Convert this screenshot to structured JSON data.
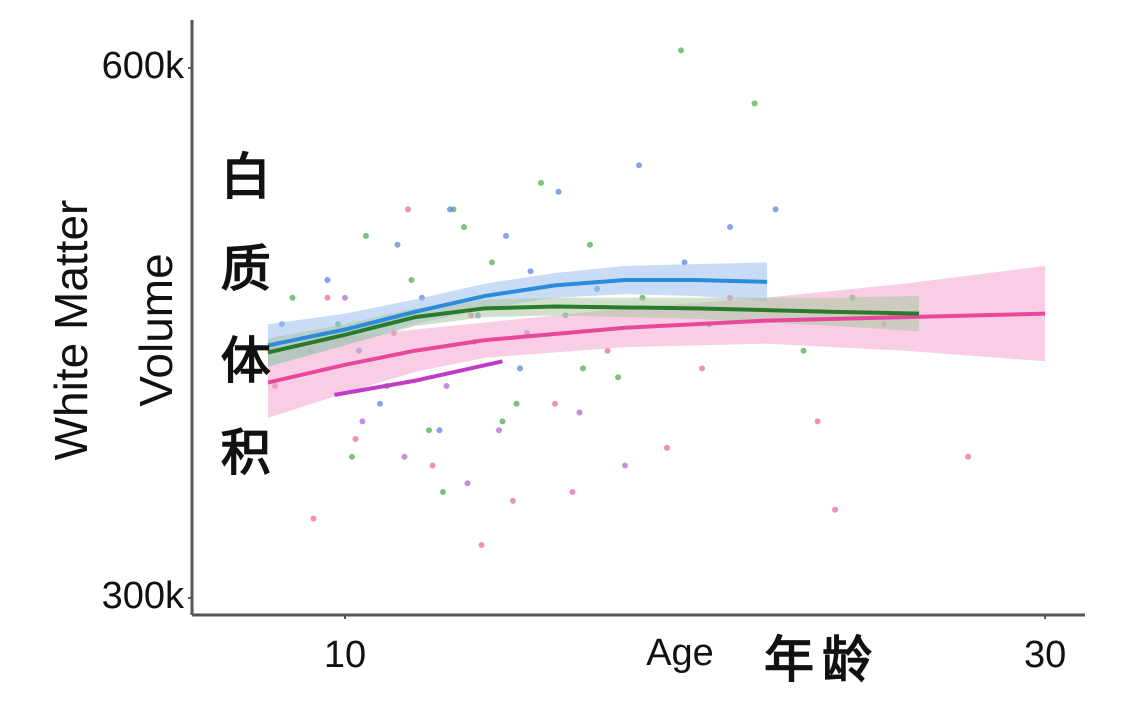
{
  "chart_data": {
    "type": "scatter",
    "xlabel": "Age",
    "ylabel_lines": [
      "White Matter",
      "Volume"
    ],
    "annotations": [
      "白质体积",
      "年龄"
    ],
    "xlim": [
      5.63,
      31.14
    ],
    "xticks": [
      10,
      30
    ],
    "ylim": [
      290400,
      627200
    ],
    "yticks": [
      {
        "value": 300000,
        "label": "300k"
      },
      {
        "value": 600000,
        "label": "600k"
      }
    ],
    "points": [
      {
        "color": "#4fae4f",
        "x": [
          8.5,
          9.8,
          10.6,
          11.2,
          11.9,
          12.4,
          13.1,
          13.7,
          14.2,
          14.9,
          15.6,
          16.3,
          17.0,
          17.8,
          18.5,
          19.6,
          20.4,
          21.7,
          23.1,
          24.5,
          10.2,
          12.8,
          14.5,
          16.8,
          13.4
        ],
        "values": [
          470000,
          455000,
          505000,
          420000,
          480000,
          395000,
          520000,
          445000,
          490000,
          410000,
          535000,
          460000,
          500000,
          425000,
          470000,
          610000,
          455000,
          580000,
          440000,
          470000,
          380000,
          360000,
          400000,
          430000,
          510000
        ]
      },
      {
        "color": "#5b86e0",
        "x": [
          8.2,
          9.5,
          10.4,
          11.5,
          12.2,
          13.0,
          13.8,
          14.6,
          15.3,
          16.1,
          17.2,
          18.4,
          19.7,
          21.0,
          22.3,
          11.0,
          12.7,
          15.0
        ],
        "values": [
          455000,
          480000,
          440000,
          500000,
          470000,
          520000,
          460000,
          505000,
          485000,
          530000,
          475000,
          545000,
          490000,
          510000,
          520000,
          410000,
          395000,
          430000
        ]
      },
      {
        "color": "#ec6aa5",
        "x": [
          8.0,
          9.1,
          10.3,
          11.4,
          12.5,
          13.6,
          14.8,
          16.0,
          17.5,
          19.2,
          21.0,
          23.5,
          25.4,
          27.8,
          9.5,
          11.8,
          13.9,
          16.5,
          20.2,
          24.0
        ],
        "values": [
          420000,
          345000,
          390000,
          450000,
          375000,
          460000,
          355000,
          410000,
          440000,
          385000,
          470000,
          400000,
          455000,
          380000,
          470000,
          520000,
          330000,
          360000,
          430000,
          350000
        ]
      },
      {
        "color": "#b56ad6",
        "x": [
          9.0,
          10.5,
          11.7,
          12.9,
          13.5,
          14.4,
          15.2,
          16.7,
          18.0,
          10.0
        ],
        "values": [
          440000,
          400000,
          380000,
          420000,
          365000,
          395000,
          450000,
          405000,
          375000,
          470000
        ]
      }
    ],
    "series": [
      {
        "color": "#e8489c",
        "band_color": "#f4a6cf",
        "x": [
          7.8,
          10,
          12,
          14,
          18,
          22,
          26,
          30
        ],
        "values": [
          422000,
          432000,
          440000,
          446000,
          453000,
          457000,
          459000,
          461000
        ],
        "lower": [
          402000,
          416000,
          428000,
          436000,
          442000,
          444000,
          440000,
          434000
        ],
        "upper": [
          442000,
          448000,
          452000,
          456000,
          464000,
          470000,
          478000,
          488000
        ]
      },
      {
        "color": "#2d8bdc",
        "band_color": "#9cc0ec",
        "x": [
          7.8,
          10,
          12,
          14,
          16,
          18,
          20,
          22.06
        ],
        "values": [
          443000,
          452000,
          462000,
          471000,
          477000,
          480000,
          480000,
          479000
        ],
        "lower": [
          431000,
          443000,
          455000,
          464000,
          470000,
          472000,
          471000,
          468000
        ],
        "upper": [
          455000,
          461000,
          469000,
          478000,
          484000,
          488000,
          489000,
          490000
        ]
      },
      {
        "color": "#2a7a2a",
        "band_color": "#a9c7a0",
        "x": [
          7.8,
          10,
          12,
          14,
          16,
          20,
          24,
          26.4
        ],
        "values": [
          439000,
          449000,
          459000,
          464000,
          465000,
          464000,
          462000,
          461000
        ],
        "lower": [
          431000,
          443000,
          454000,
          459000,
          460000,
          458000,
          454000,
          451000
        ],
        "upper": [
          447000,
          455000,
          464000,
          469000,
          470000,
          470000,
          470000,
          471000
        ]
      },
      {
        "color": "#c13cc6",
        "x": [
          9.7,
          12,
          14.5
        ],
        "values": [
          415000,
          423000,
          434000
        ]
      }
    ]
  }
}
